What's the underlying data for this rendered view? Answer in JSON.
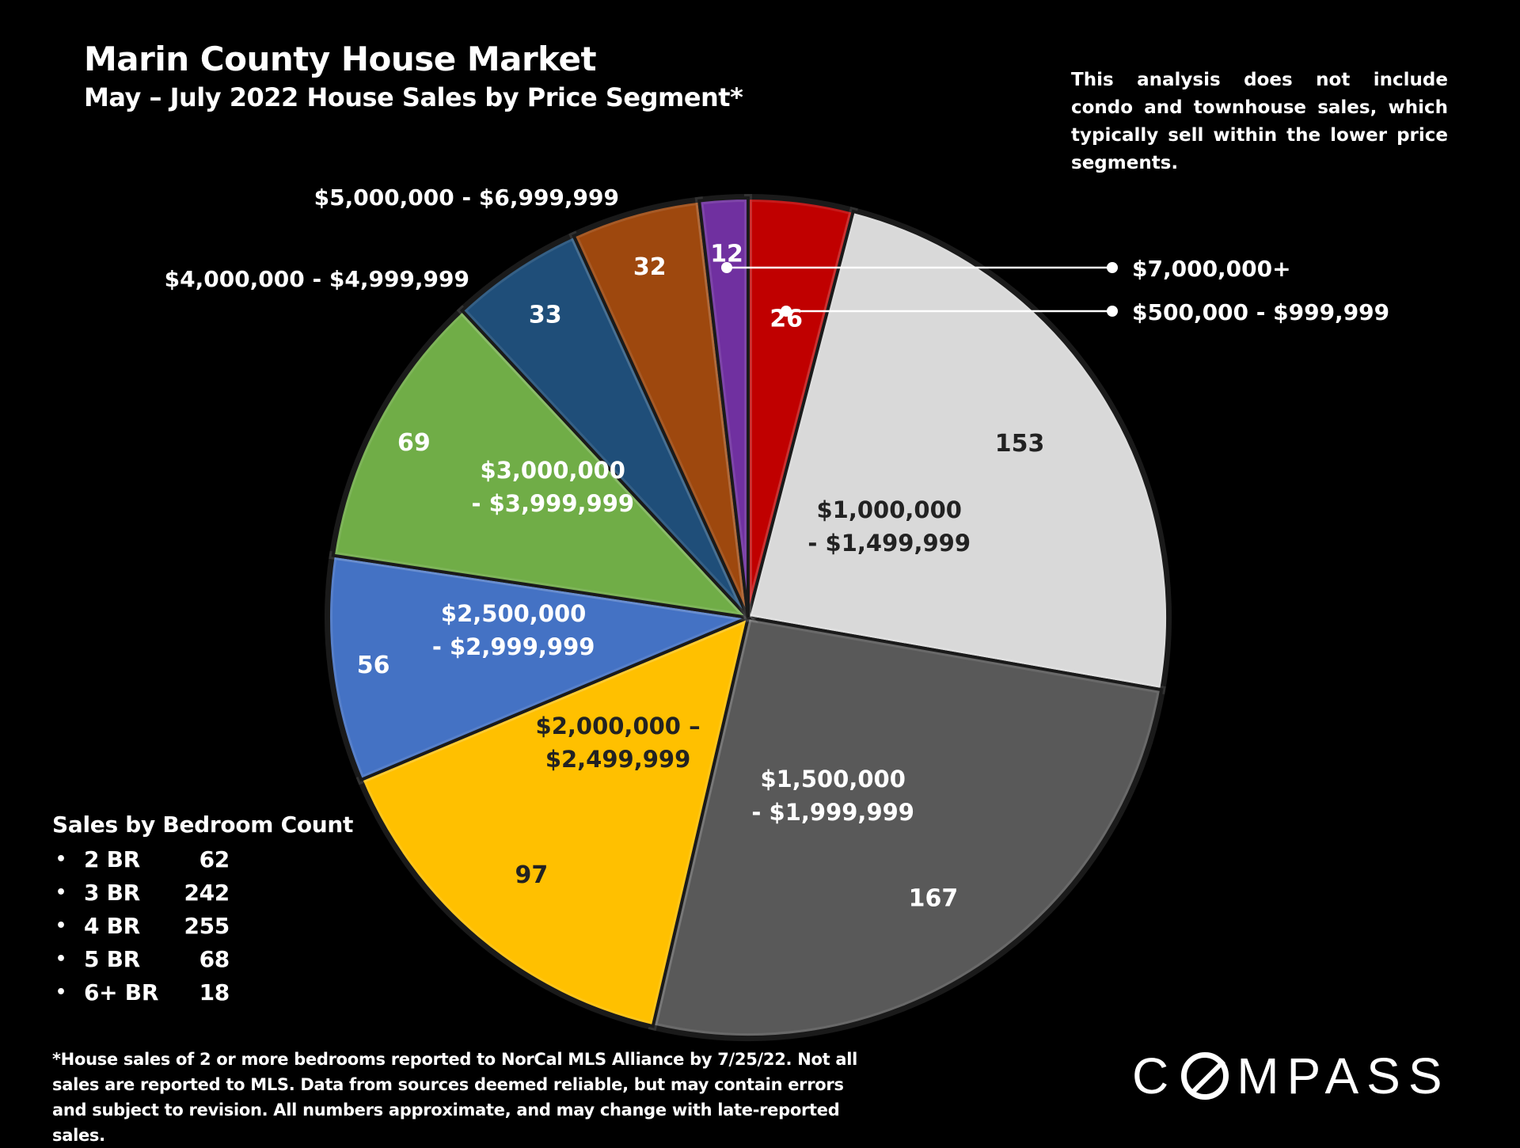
{
  "chart_data": {
    "type": "pie",
    "title": "Marin County House Market",
    "subtitle": "May – July 2022 House Sales by Price Segment*",
    "note": "This analysis does not include condo and townhouse sales, which typically sell within the lower price segments.",
    "slices": [
      {
        "name": "$500,000 - $999,999",
        "label_lines": [
          "$500,000 - $999,999"
        ],
        "value": 26,
        "color": "#C00000",
        "value_color": "#ffffff",
        "seg_color": "#ffffff"
      },
      {
        "name": "$1,000,000 - $1,499,999",
        "label_lines": [
          "$1,000,000",
          "- $1,499,999"
        ],
        "value": 153,
        "color": "#D9D9D9",
        "value_color": "#222222",
        "seg_color": "#222222"
      },
      {
        "name": "$1,500,000 - $1,999,999",
        "label_lines": [
          "$1,500,000",
          "- $1,999,999"
        ],
        "value": 167,
        "color": "#595959",
        "value_color": "#ffffff",
        "seg_color": "#ffffff"
      },
      {
        "name": "$2,000,000 – $2,499,999",
        "label_lines": [
          "$2,000,000 –",
          "$2,499,999"
        ],
        "value": 97,
        "color": "#FFC000",
        "value_color": "#222222",
        "seg_color": "#222222"
      },
      {
        "name": "$2,500,000 - $2,999,999",
        "label_lines": [
          "$2,500,000",
          "- $2,999,999"
        ],
        "value": 56,
        "color": "#4472C4",
        "value_color": "#ffffff",
        "seg_color": "#ffffff"
      },
      {
        "name": "$3,000,000 - $3,999,999",
        "label_lines": [
          "$3,000,000",
          "- $3,999,999"
        ],
        "value": 69,
        "color": "#70AD47",
        "value_color": "#ffffff",
        "seg_color": "#ffffff"
      },
      {
        "name": "$4,000,000 - $4,999,999",
        "label_lines": [
          "$4,000,000 - $4,999,999"
        ],
        "value": 33,
        "color": "#1F4E79",
        "value_color": "#ffffff",
        "seg_color": "#ffffff"
      },
      {
        "name": "$5,000,000 - $6,999,999",
        "label_lines": [
          "$5,000,000 - $6,999,999"
        ],
        "value": 32,
        "color": "#9E480E",
        "value_color": "#ffffff",
        "seg_color": "#ffffff"
      },
      {
        "name": "$7,000,000+",
        "label_lines": [
          "$7,000,000+"
        ],
        "value": 12,
        "color": "#7030A0",
        "value_color": "#ffffff",
        "seg_color": "#ffffff"
      }
    ]
  },
  "legend": {
    "title": "Sales by Bedroom Count",
    "bullet": "•",
    "items": [
      {
        "label": "2 BR",
        "count": "62"
      },
      {
        "label": "3 BR",
        "count": "242"
      },
      {
        "label": "4 BR",
        "count": "255"
      },
      {
        "label": "5 BR",
        "count": "68"
      },
      {
        "label": "6+ BR",
        "count": "18"
      }
    ]
  },
  "footnote": "*House sales of 2 or more bedrooms reported to NorCal MLS Alliance by 7/25/22. Not all sales are reported to MLS. Data from sources deemed reliable, but may contain errors and subject to revision. All numbers approximate, and may change with late-reported sales.",
  "logo": {
    "text_before": "C",
    "text_after": "MPASS"
  }
}
